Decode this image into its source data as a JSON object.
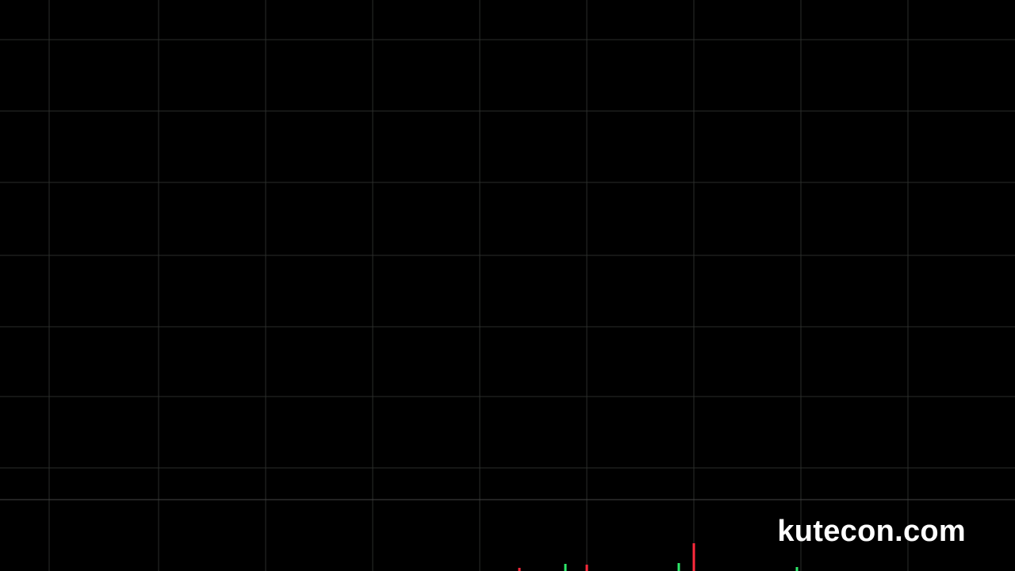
{
  "watermark": {
    "text": "kutecon.com"
  },
  "colors": {
    "background": "#000000",
    "grid": "#2a2d2a",
    "up": "#2ee86a",
    "down": "#ff2a3c",
    "ma_white": "#d8d8d8",
    "ma_blue": "#3f6cf0",
    "ma_cyan": "#21b4d8",
    "ma_green": "#5ee83a",
    "ma_yellow": "#e8ee3c",
    "ma_orange": "#f0b43a"
  },
  "chart_data": {
    "type": "candlestick",
    "title": "",
    "xlabel": "",
    "ylabel": "",
    "grid": true,
    "ylim": [
      0,
      100
    ],
    "ohlc": [],
    "volume": [],
    "volume_ylim": [
      0,
      100
    ],
    "moving_averages": [
      {
        "color": "ma_white",
        "values": []
      },
      {
        "color": "ma_blue",
        "values": []
      },
      {
        "color": "ma_cyan",
        "values": []
      },
      {
        "color": "ma_green",
        "values": []
      },
      {
        "color": "ma_yellow",
        "values": []
      },
      {
        "color": "ma_orange",
        "values": []
      }
    ]
  }
}
